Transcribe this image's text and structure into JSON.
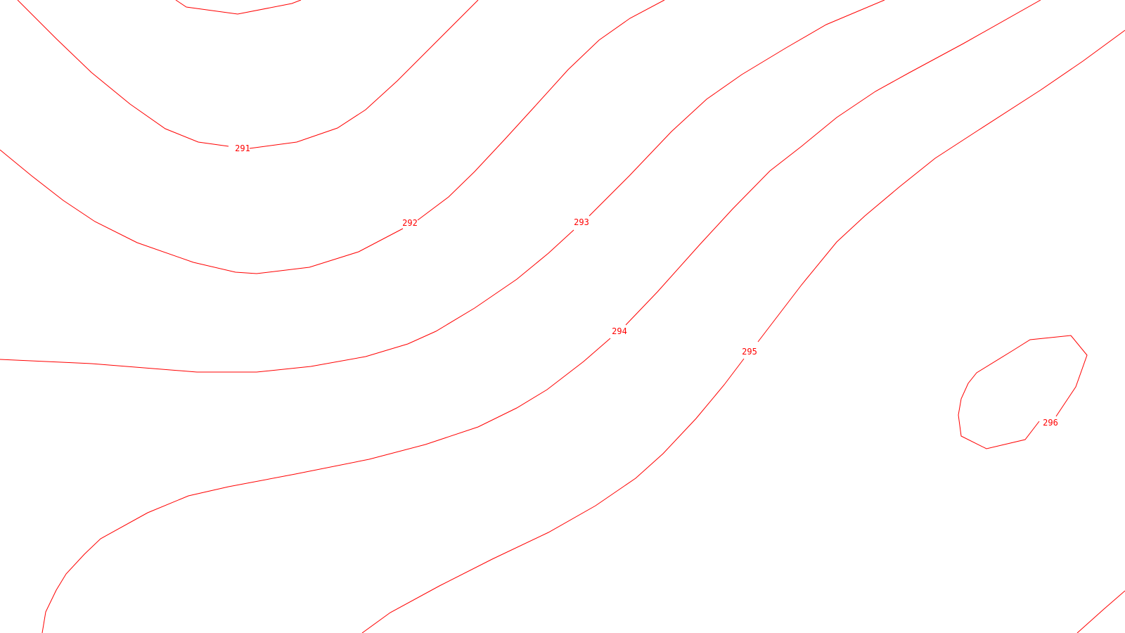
{
  "map": {
    "line_color": "#ff0000",
    "background": "#ffffff",
    "contours": [
      {
        "id": "291",
        "label": "291"
      },
      {
        "id": "292",
        "label": "292"
      },
      {
        "id": "293",
        "label": "293"
      },
      {
        "id": "294",
        "label": "294"
      },
      {
        "id": "295",
        "label": "295"
      },
      {
        "id": "296",
        "label": "296"
      }
    ]
  }
}
